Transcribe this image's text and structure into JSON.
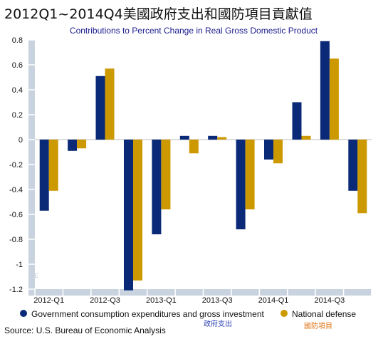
{
  "chart_data": {
    "type": "bar",
    "title": "2012Q1~2014Q4美國政府支出和國防項目貢獻值",
    "subtitle": "Contributions to Percent Change in Real Gross Domestic Product",
    "source": "Source: U.S. Bureau of Economic Analysis",
    "categories": [
      "2012-Q1",
      "2012-Q2",
      "2012-Q3",
      "2012-Q4",
      "2013-Q1",
      "2013-Q2",
      "2013-Q3",
      "2013-Q4",
      "2014-Q1",
      "2014-Q2",
      "2014-Q3",
      "2014-Q4"
    ],
    "x_tick_labels": [
      "2012-Q1",
      "2012-Q3",
      "2013-Q1",
      "2013-Q3",
      "2014-Q1",
      "2014-Q3"
    ],
    "y_ticks": [
      "0.8",
      "0.6",
      "0.4",
      "0.2",
      "0",
      "-0.2",
      "-0.4",
      "-0.6",
      "-0.8",
      "-1",
      "-1.2"
    ],
    "ylim": [
      -1.2,
      0.8
    ],
    "grid": false,
    "legend_position": "bottom",
    "series": [
      {
        "name": "Government consumption expenditures and gross investment",
        "label_zh": "政府支出",
        "color": "#0a2a78",
        "values": [
          -0.57,
          -0.09,
          0.51,
          -1.21,
          -0.76,
          0.03,
          0.03,
          -0.72,
          -0.16,
          0.3,
          0.79,
          -0.41
        ]
      },
      {
        "name": "National defense",
        "label_zh": "國防項目",
        "color": "#cc9900",
        "values": [
          -0.41,
          -0.07,
          0.57,
          -1.13,
          -0.56,
          -0.11,
          0.02,
          -0.56,
          -0.19,
          0.03,
          0.65,
          -0.59
        ]
      }
    ],
    "watermark": "DE"
  }
}
